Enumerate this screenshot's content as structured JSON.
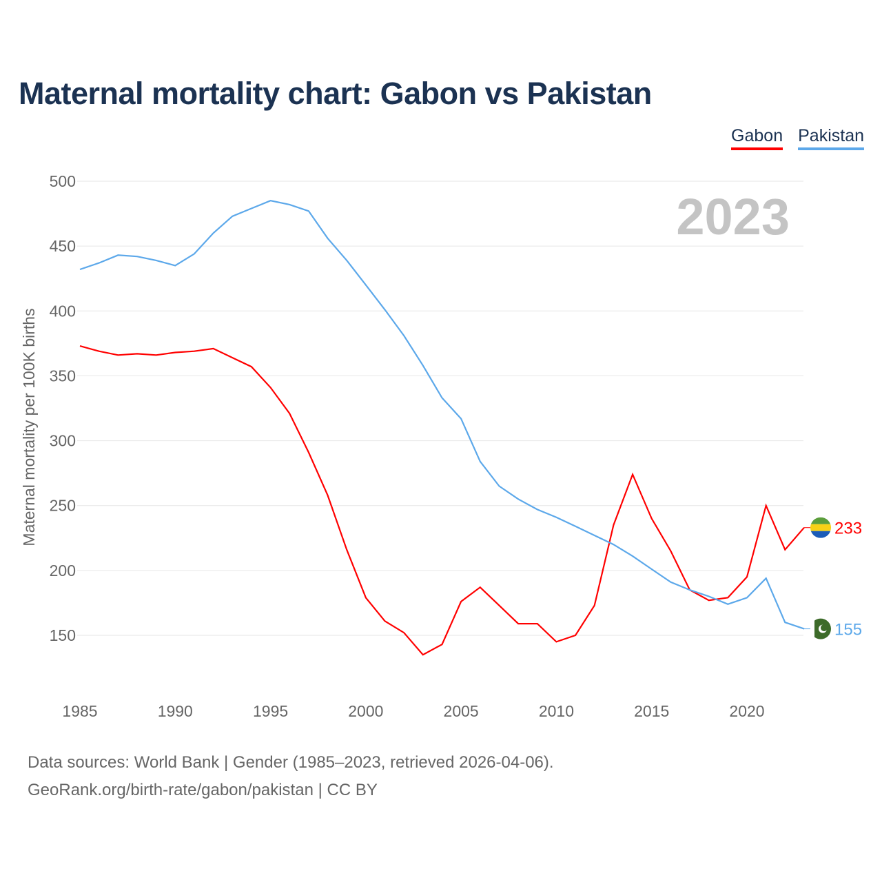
{
  "title": "Maternal mortality chart: Gabon vs Pakistan",
  "footer": {
    "line1": "Data sources: World Bank | Gender (1985–2023, retrieved 2026-04-06).",
    "line2": "GeoRank.org/birth-rate/gabon/pakistan | CC BY"
  },
  "chart_data": {
    "type": "line",
    "title": "Maternal mortality chart: Gabon vs Pakistan",
    "ylabel": "Maternal mortality per 100K births",
    "xlabel": "",
    "year_label": "2023",
    "xlim": [
      1985,
      2023
    ],
    "ylim": [
      110,
      500
    ],
    "xticks": [
      1985,
      1990,
      1995,
      2000,
      2005,
      2010,
      2015,
      2020
    ],
    "yticks": [
      150,
      200,
      250,
      300,
      350,
      400,
      450,
      500
    ],
    "grid": true,
    "legend_position": "top-right",
    "x": [
      1985,
      1986,
      1987,
      1988,
      1989,
      1990,
      1991,
      1992,
      1993,
      1994,
      1995,
      1996,
      1997,
      1998,
      1999,
      2000,
      2001,
      2002,
      2003,
      2004,
      2005,
      2006,
      2007,
      2008,
      2009,
      2010,
      2011,
      2012,
      2013,
      2014,
      2015,
      2016,
      2017,
      2018,
      2019,
      2020,
      2021,
      2022,
      2023
    ],
    "series": [
      {
        "name": "Gabon",
        "color": "#ff0000",
        "end_label": "233",
        "values": [
          373,
          369,
          366,
          367,
          366,
          368,
          369,
          371,
          364,
          357,
          341,
          321,
          291,
          258,
          216,
          179,
          161,
          152,
          135,
          143,
          176,
          187,
          173,
          159,
          159,
          145,
          150,
          173,
          235,
          274,
          240,
          215,
          185,
          177,
          179,
          195,
          250,
          216,
          233
        ]
      },
      {
        "name": "Pakistan",
        "color": "#5ca8ea",
        "end_label": "155",
        "values": [
          432,
          437,
          443,
          442,
          439,
          435,
          444,
          460,
          473,
          479,
          485,
          482,
          477,
          456,
          439,
          420,
          401,
          381,
          358,
          333,
          317,
          284,
          265,
          255,
          247,
          241,
          234,
          227,
          220,
          211,
          201,
          191,
          185,
          180,
          174,
          179,
          194,
          160,
          155
        ]
      }
    ]
  }
}
